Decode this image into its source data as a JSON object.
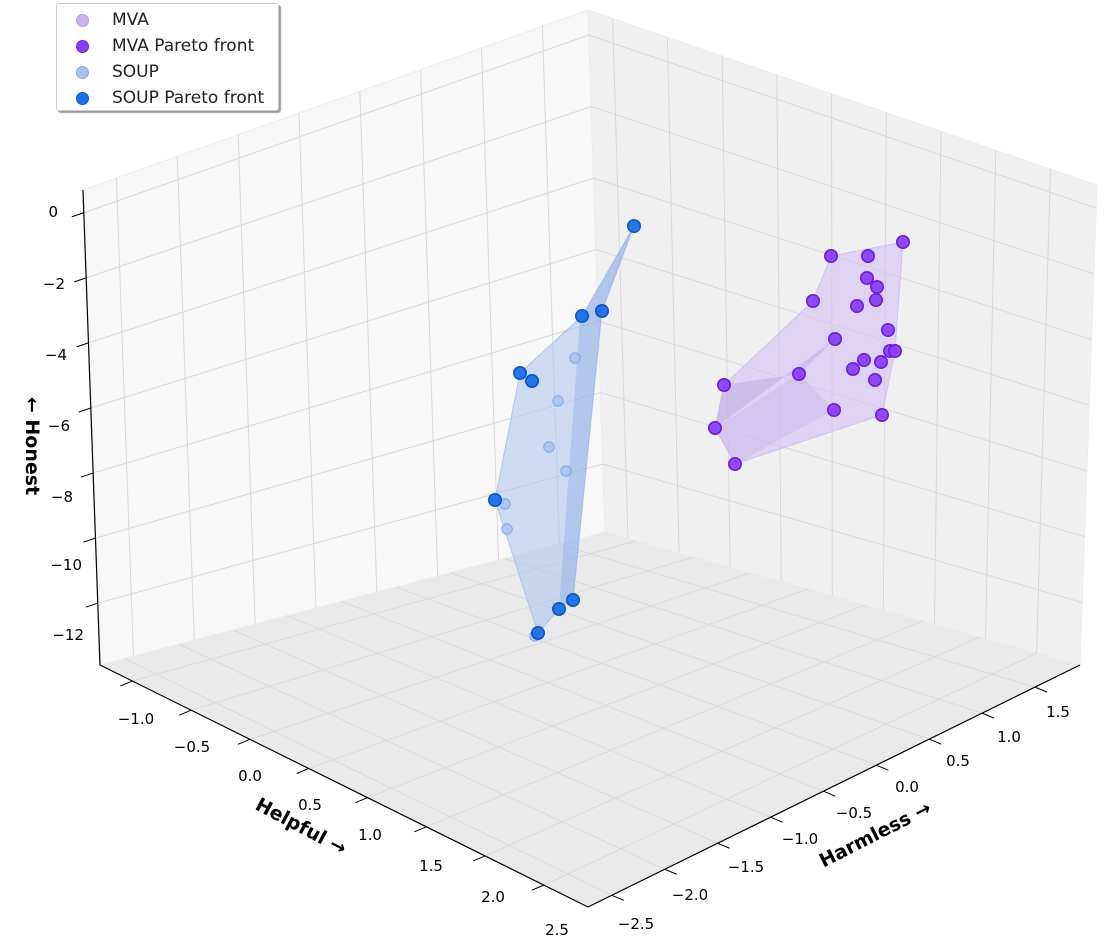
{
  "chart_data": {
    "type": "scatter",
    "projection": "3d",
    "xlabel": "Helpful →",
    "ylabel": "Harmless →",
    "zlabel": "← Honest",
    "x_ticks": [
      "−1.0",
      "−0.5",
      "0.0",
      "0.5",
      "1.0",
      "1.5",
      "2.0",
      "2.5"
    ],
    "y_ticks": [
      "−2.5",
      "−2.0",
      "−1.5",
      "−1.0",
      "−0.5",
      "0.0",
      "0.5",
      "1.0",
      "1.5"
    ],
    "z_ticks": [
      "0",
      "−2",
      "−4",
      "−6",
      "−8",
      "−10",
      "−12"
    ],
    "z_tick_values": [
      0,
      -2,
      -4,
      -6,
      -8,
      -10,
      -12
    ],
    "grid": true,
    "legend_position": "top-left",
    "legend": [
      {
        "label": "MVA",
        "color": "#c9b2f0",
        "edge": "#b79be6"
      },
      {
        "label": "MVA Pareto front",
        "color": "#8a3ffc",
        "edge": "#6a1fd6"
      },
      {
        "label": "SOUP",
        "color": "#a9c3ef",
        "edge": "#85a9e4"
      },
      {
        "label": "SOUP Pareto front",
        "color": "#1a6fe8",
        "edge": "#0b55c6"
      }
    ],
    "series": [
      {
        "name": "SOUP",
        "color": "#a9c3ef",
        "points": [
          {
            "hz": -4.3,
            "sx": 575,
            "sy": 358
          },
          {
            "hz": -5.4,
            "sx": 558,
            "sy": 401
          },
          {
            "hz": -6.7,
            "sx": 549,
            "sy": 447
          },
          {
            "hz": -7.4,
            "sx": 566,
            "sy": 471
          },
          {
            "hz": -8.4,
            "sx": 505,
            "sy": 504
          },
          {
            "hz": -9.1,
            "sx": 507,
            "sy": 529
          },
          {
            "hz": -12.2,
            "sx": 535,
            "sy": 636
          }
        ]
      },
      {
        "name": "SOUP Pareto front",
        "color": "#1a6fe8",
        "points": [
          {
            "hz": -0.4,
            "sx": 634,
            "sy": 226
          },
          {
            "hz": -2.9,
            "sx": 602,
            "sy": 311
          },
          {
            "hz": -3.0,
            "sx": 582,
            "sy": 316
          },
          {
            "hz": -4.7,
            "sx": 520,
            "sy": 373
          },
          {
            "hz": -4.9,
            "sx": 532,
            "sy": 381
          },
          {
            "hz": -8.3,
            "sx": 495,
            "sy": 500
          },
          {
            "hz": -11.2,
            "sx": 573,
            "sy": 600
          },
          {
            "hz": -11.5,
            "sx": 559,
            "sy": 609
          },
          {
            "hz": -12.2,
            "sx": 538,
            "sy": 633
          }
        ]
      },
      {
        "name": "MVA Pareto front",
        "color": "#8a3ffc",
        "points": [
          {
            "hz": -1.0,
            "sx": 903,
            "sy": 242
          },
          {
            "hz": -1.4,
            "sx": 831,
            "sy": 256
          },
          {
            "hz": -1.4,
            "sx": 868,
            "sy": 256
          },
          {
            "hz": -2.0,
            "sx": 867,
            "sy": 278
          },
          {
            "hz": -2.2,
            "sx": 877,
            "sy": 287
          },
          {
            "hz": -2.6,
            "sx": 813,
            "sy": 301
          },
          {
            "hz": -2.6,
            "sx": 876,
            "sy": 300
          },
          {
            "hz": -2.8,
            "sx": 857,
            "sy": 306
          },
          {
            "hz": -3.5,
            "sx": 888,
            "sy": 330
          },
          {
            "hz": -3.7,
            "sx": 835,
            "sy": 339
          },
          {
            "hz": -4.1,
            "sx": 890,
            "sy": 351
          },
          {
            "hz": -4.1,
            "sx": 895,
            "sy": 351
          },
          {
            "hz": -4.4,
            "sx": 864,
            "sy": 360
          },
          {
            "hz": -4.4,
            "sx": 881,
            "sy": 362
          },
          {
            "hz": -4.6,
            "sx": 853,
            "sy": 369
          },
          {
            "hz": -4.6,
            "sx": 799,
            "sy": 374
          },
          {
            "hz": -4.8,
            "sx": 875,
            "sy": 380
          },
          {
            "hz": -4.9,
            "sx": 724,
            "sy": 385
          },
          {
            "hz": -5.8,
            "sx": 834,
            "sy": 410
          },
          {
            "hz": -5.9,
            "sx": 882,
            "sy": 415
          },
          {
            "hz": -6.1,
            "sx": 715,
            "sy": 428
          },
          {
            "hz": -7.2,
            "sx": 735,
            "sy": 464
          }
        ]
      }
    ]
  }
}
